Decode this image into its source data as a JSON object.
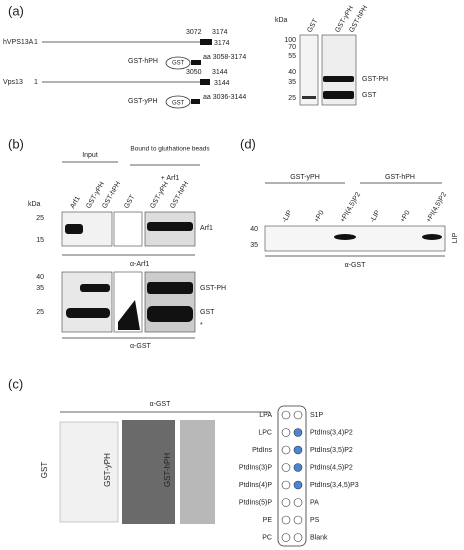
{
  "panel_a": {
    "label": "(a)",
    "constructs": [
      {
        "name": "hVPS13A",
        "start": "1",
        "domain_start": "3072",
        "domain_end": "3174",
        "end": "3174",
        "fusion": "GST-hPH",
        "tag": "GST",
        "range": "aa 3058-3174"
      },
      {
        "name": "Vps13",
        "start": "1",
        "domain_start": "3050",
        "domain_end": "3144",
        "end": "3144",
        "fusion": "GST-yPH",
        "tag": "GST",
        "range": "aa 3036-3144"
      }
    ],
    "blot": {
      "unit": "kDa",
      "markers": [
        "100",
        "70",
        "55",
        "40",
        "35",
        "25"
      ],
      "lanes": [
        "GST",
        "GST-yPH",
        "GST-hPH"
      ],
      "bands": [
        "GST-PH",
        "GST"
      ]
    }
  },
  "panel_b": {
    "label": "(b)",
    "input": "Input",
    "bound": "Bound to gluthatione beads",
    "treatment": "+ Arf1",
    "unit": "kDa",
    "lanes": [
      "Arf1",
      "GST-yPH",
      "GST-hPH",
      "GST",
      "GST-yPH",
      "GST-hPH"
    ],
    "top_blot": {
      "markers": [
        "25",
        "15"
      ],
      "bands": [
        "Arf1"
      ],
      "antibody": "α-Arf1"
    },
    "bottom_blot": {
      "markers": [
        "40",
        "35",
        "25"
      ],
      "bands": [
        "GST-PH",
        "GST",
        "*"
      ],
      "antibody": "α-GST"
    }
  },
  "panel_c": {
    "label": "(c)",
    "antibody": "α-GST",
    "strips": [
      "GST",
      "GST-yPH",
      "GST-hPH"
    ],
    "left_lipids": [
      "LPA",
      "LPC",
      "PtdIns",
      "PtdIns(3)P",
      "PtdIns(4)P",
      "PtdIns(5)P",
      "PE",
      "PC"
    ],
    "right_lipids": [
      "S1P",
      "PtdIns(3,4)P2",
      "PtdIns(3,5)P2",
      "PtdIns(4,5)P2",
      "PtdIns(3,4,5)P3",
      "PA",
      "PS",
      "Blank"
    ],
    "right_bound": [
      false,
      true,
      true,
      true,
      true,
      false,
      false,
      false
    ]
  },
  "panel_d": {
    "label": "(d)",
    "groups": [
      "GST-yPH",
      "GST-hPH"
    ],
    "lanes": [
      "-LIP",
      "+P0",
      "+PI(4,5)P2",
      "-LIP",
      "+P0",
      "+PI(4,5)P2"
    ],
    "markers": [
      "40",
      "35"
    ],
    "side": "LIP",
    "antibody": "α-GST"
  }
}
